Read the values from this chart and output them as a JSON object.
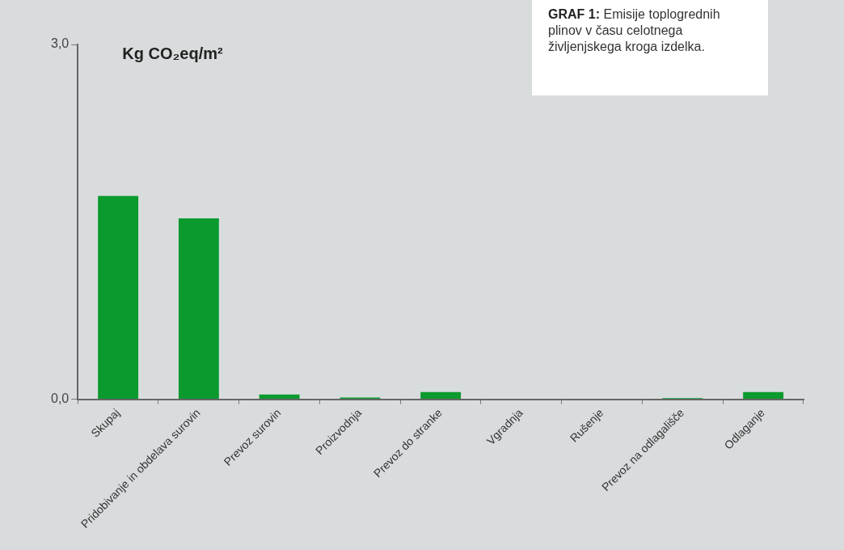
{
  "chart_data": {
    "type": "bar",
    "title": "GRAF 1:",
    "subtitle": "Emisije toplogrednih plinov v času celotnega življenjskega kroga izdelka.",
    "ylabel": "Kg CO₂eq/m²",
    "categories": [
      "Skupaj",
      "Pridobivanje in obdelava surovin",
      "Prevoz surovin",
      "Proizvodnja",
      "Prevoz do stranke",
      "Vgradnja",
      "Rušenje",
      "Prevoz na odlagališče",
      "Odlaganje"
    ],
    "values": [
      1.72,
      1.53,
      0.04,
      0.015,
      0.06,
      0,
      0,
      0.01,
      0.06
    ],
    "color": "#0a9a2e",
    "ylim": [
      0,
      3
    ],
    "yticks": [
      {
        "value": 0,
        "label": "0,0"
      },
      {
        "value": 3,
        "label": "3,0"
      }
    ],
    "grid": false,
    "legend": false
  }
}
